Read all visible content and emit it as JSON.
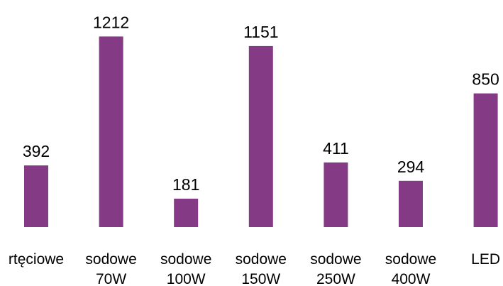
{
  "chart_data": {
    "type": "bar",
    "title": "",
    "xlabel": "",
    "ylabel": "",
    "categories": [
      [
        "rtęciowe"
      ],
      [
        "sodowe",
        "70W"
      ],
      [
        "sodowe",
        "100W"
      ],
      [
        "sodowe",
        "150W"
      ],
      [
        "sodowe",
        "250W"
      ],
      [
        "sodowe",
        "400W"
      ],
      [
        "LED"
      ]
    ],
    "values": [
      392,
      1212,
      181,
      1151,
      411,
      294,
      850
    ],
    "ylim": [
      0,
      1300
    ],
    "grid": false,
    "legend": "none",
    "bar_color": "#853a86"
  }
}
